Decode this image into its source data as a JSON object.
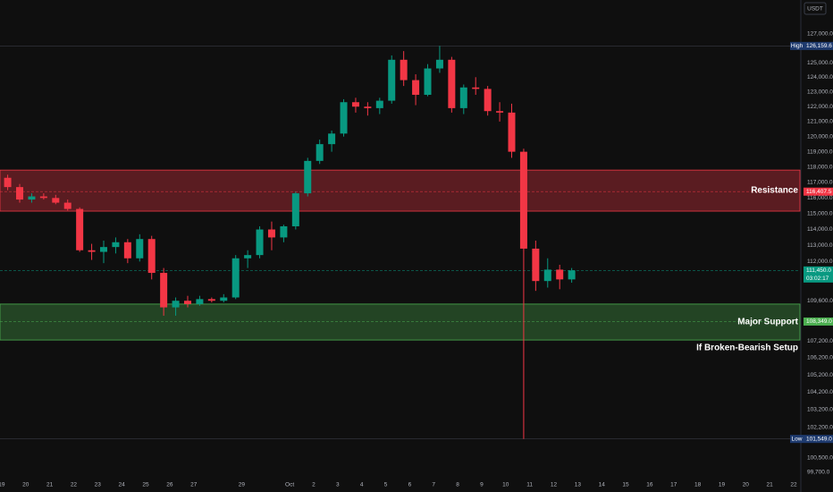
{
  "chart_data": {
    "type": "candlestick",
    "currency": "USDT",
    "log_scale": true,
    "ylim": [
      99350,
      129400
    ],
    "xlim": [
      -0.07,
      33.26
    ],
    "up_color": "#089981",
    "down_color": "#f23645",
    "yticks": [
      {
        "value": 127000,
        "label": "127,000.0"
      },
      {
        "value": 125000,
        "label": "125,000.0"
      },
      {
        "value": 124000,
        "label": "124,000.0"
      },
      {
        "value": 123000,
        "label": "123,000.0"
      },
      {
        "value": 122000,
        "label": "122,000.0"
      },
      {
        "value": 121000,
        "label": "121,000.0"
      },
      {
        "value": 120000,
        "label": "120,000.0"
      },
      {
        "value": 119000,
        "label": "119,000.0"
      },
      {
        "value": 118000,
        "label": "118,000.0"
      },
      {
        "value": 117000,
        "label": "117,000.0"
      },
      {
        "value": 116000,
        "label": "116,000.0"
      },
      {
        "value": 115000,
        "label": "115,000.0"
      },
      {
        "value": 114000,
        "label": "114,000.0"
      },
      {
        "value": 113000,
        "label": "113,000.0"
      },
      {
        "value": 112000,
        "label": "112,000.0"
      },
      {
        "value": 109600,
        "label": "109,600.0"
      },
      {
        "value": 107200,
        "label": "107,200.0"
      },
      {
        "value": 106200,
        "label": "106,200.0"
      },
      {
        "value": 105200,
        "label": "105,200.0"
      },
      {
        "value": 104200,
        "label": "104,200.0"
      },
      {
        "value": 103200,
        "label": "103,200.0"
      },
      {
        "value": 102200,
        "label": "102,200.0"
      },
      {
        "value": 100500,
        "label": "100,500.0"
      },
      {
        "value": 99700,
        "label": "99,700.0"
      }
    ],
    "xticks": [
      {
        "value": 0,
        "label": "19"
      },
      {
        "value": 1,
        "label": "20"
      },
      {
        "value": 2,
        "label": "21"
      },
      {
        "value": 3,
        "label": "22"
      },
      {
        "value": 4,
        "label": "23"
      },
      {
        "value": 5,
        "label": "24"
      },
      {
        "value": 6,
        "label": "25"
      },
      {
        "value": 7,
        "label": "26"
      },
      {
        "value": 8,
        "label": "27"
      },
      {
        "value": 10,
        "label": "29"
      },
      {
        "value": 12,
        "label": "Oct"
      },
      {
        "value": 13,
        "label": "2"
      },
      {
        "value": 14,
        "label": "3"
      },
      {
        "value": 15,
        "label": "4"
      },
      {
        "value": 16,
        "label": "5"
      },
      {
        "value": 17,
        "label": "6"
      },
      {
        "value": 18,
        "label": "7"
      },
      {
        "value": 19,
        "label": "8"
      },
      {
        "value": 20,
        "label": "9"
      },
      {
        "value": 21,
        "label": "10"
      },
      {
        "value": 22,
        "label": "11"
      },
      {
        "value": 23,
        "label": "12"
      },
      {
        "value": 24,
        "label": "13"
      },
      {
        "value": 25,
        "label": "14"
      },
      {
        "value": 26,
        "label": "15"
      },
      {
        "value": 27,
        "label": "16"
      },
      {
        "value": 28,
        "label": "17"
      },
      {
        "value": 29,
        "label": "18"
      },
      {
        "value": 30,
        "label": "19"
      },
      {
        "value": 31,
        "label": "20"
      },
      {
        "value": 32,
        "label": "21"
      },
      {
        "value": 33,
        "label": "22"
      }
    ],
    "x": [
      0.25,
      0.75,
      1.25,
      1.75,
      2.25,
      2.75,
      3.25,
      3.75,
      4.25,
      4.75,
      5.25,
      5.75,
      6.25,
      6.75,
      7.25,
      7.75,
      8.25,
      8.75,
      9.25,
      9.75,
      10.25,
      10.75,
      11.25,
      11.75,
      12.25,
      12.75,
      13.25,
      13.75,
      14.25,
      14.75,
      15.25,
      15.75,
      16.25,
      16.75,
      17.25,
      17.75,
      18.25,
      18.75,
      19.25,
      19.75,
      20.25,
      20.75,
      21.25,
      21.75,
      22.25,
      22.75,
      23.25,
      23.75
    ],
    "open": [
      117300,
      116700,
      115900,
      116100,
      116000,
      115700,
      115300,
      112700,
      112600,
      112900,
      113200,
      112200,
      113400,
      111300,
      109200,
      109600,
      109400,
      109700,
      109600,
      109800,
      112200,
      112400,
      114000,
      113500,
      114200,
      116300,
      118400,
      119500,
      120200,
      122300,
      122000,
      121900,
      122400,
      125200,
      123800,
      122800,
      124600,
      125200,
      121900,
      123300,
      123200,
      121700,
      121600,
      119000,
      112800,
      110800,
      111500,
      110900
    ],
    "high": [
      117500,
      116900,
      116300,
      116300,
      116200,
      115900,
      115400,
      113100,
      113300,
      113500,
      113400,
      113700,
      113600,
      111600,
      109800,
      109900,
      109900,
      109800,
      110000,
      112400,
      112700,
      114200,
      114500,
      114300,
      116400,
      118600,
      119800,
      120400,
      122500,
      122600,
      122300,
      122600,
      125500,
      125800,
      124200,
      124900,
      126159.6,
      125400,
      123500,
      124000,
      123400,
      122300,
      122200,
      119200,
      113300,
      112200,
      111800,
      111600
    ],
    "low": [
      116500,
      115700,
      115700,
      115900,
      115600,
      115200,
      112600,
      112100,
      111900,
      112500,
      111900,
      112000,
      110900,
      108700,
      108700,
      109200,
      109300,
      109500,
      109500,
      109700,
      111600,
      112200,
      112700,
      113200,
      114000,
      116100,
      118200,
      119000,
      120000,
      121600,
      121400,
      121500,
      122200,
      123400,
      122100,
      122700,
      124300,
      121600,
      121500,
      122800,
      121400,
      121000,
      118600,
      101549,
      110200,
      110400,
      110300,
      110700
    ],
    "close": [
      116700,
      115900,
      116100,
      116000,
      115700,
      115300,
      112700,
      112600,
      112900,
      113200,
      112200,
      113400,
      111300,
      109200,
      109600,
      109400,
      109700,
      109600,
      109800,
      112200,
      112400,
      114000,
      113500,
      114200,
      116300,
      118400,
      119500,
      120200,
      122300,
      122000,
      121900,
      122400,
      125200,
      123800,
      122800,
      124600,
      125200,
      121900,
      123300,
      123200,
      121700,
      121600,
      119000,
      112800,
      110800,
      111500,
      110900,
      111450
    ],
    "zones": [
      {
        "name": "Resistance",
        "from": 115160,
        "to": 117800,
        "color": "#f23645"
      },
      {
        "name": "Major Support",
        "from": 107250,
        "to": 109400,
        "color": "#4caf50",
        "note": "If Broken-Bearish Setup"
      }
    ],
    "price_labels": [
      {
        "tag": "High",
        "value": 126159.6,
        "label": "126,159.6",
        "color": "#1e3a6e"
      },
      {
        "value": 116407.5,
        "label": "116,407.5",
        "color": "#f23645"
      },
      {
        "value": 111450,
        "label": "111,450.0",
        "countdown": "03:02:17",
        "color": "#089981"
      },
      {
        "value": 108349,
        "label": "108,349.0",
        "color": "#4caf50"
      },
      {
        "tag": "Low",
        "value": 101549,
        "label": "101,549.0",
        "color": "#1e3a6e"
      }
    ]
  }
}
